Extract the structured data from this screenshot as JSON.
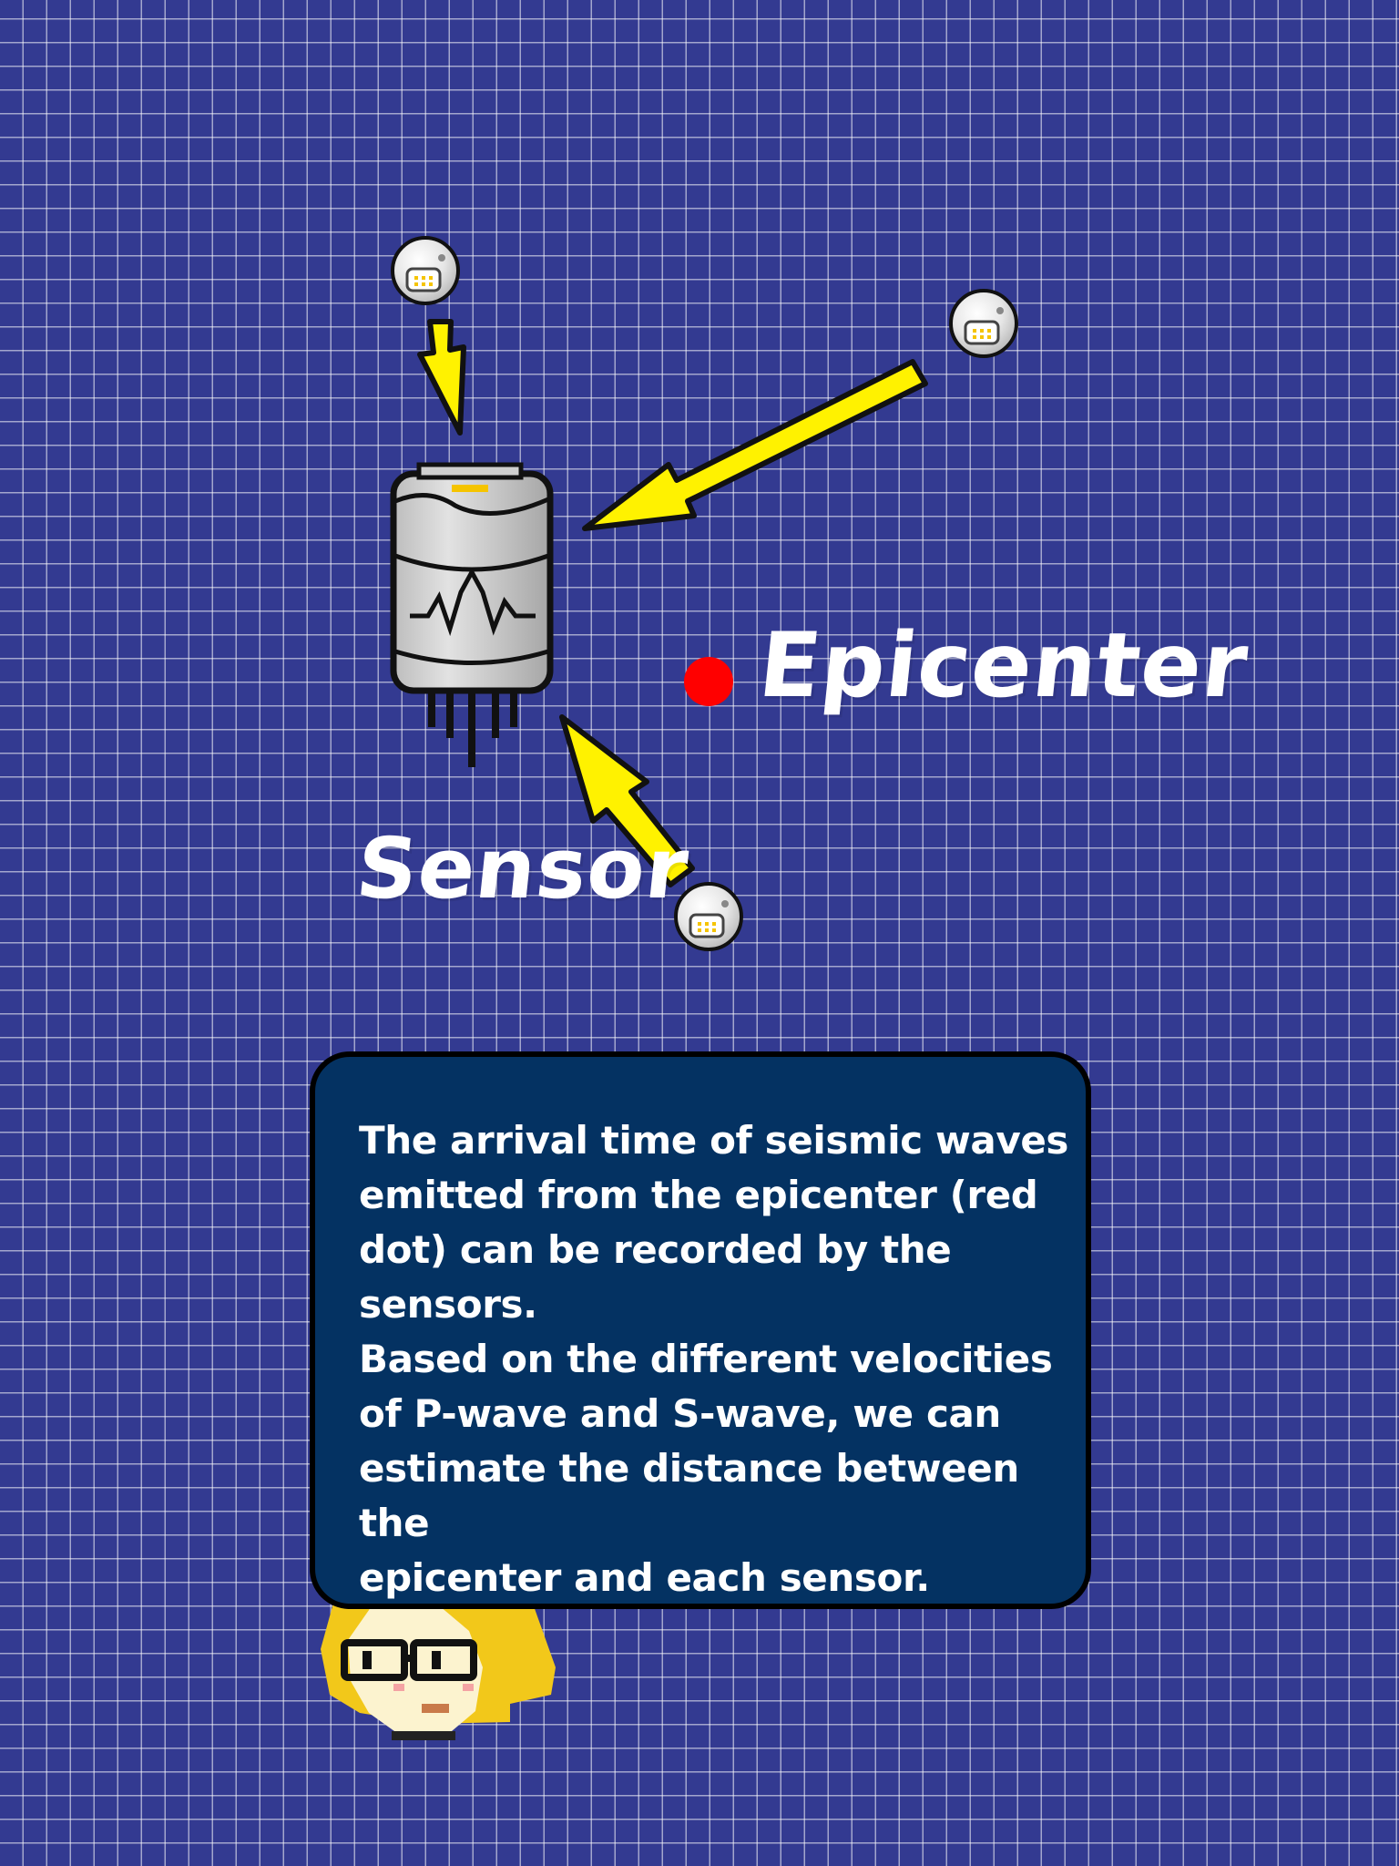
{
  "scene": {
    "epicenter_label": "Epicenter",
    "sensor_label": "Sensor"
  },
  "dialog": {
    "text": "The arrival time of seismic waves\nemitted from the epicenter (red\ndot) can be recorded by the sensors.\nBased on the different velocities\nof P-wave and S-wave, we can\nestimate the distance between the\nepicenter and each sensor."
  },
  "colors": {
    "background": "#333a91",
    "grid_lines": "#ffffff",
    "arrow_fill": "#fff200",
    "epicenter_dot": "#ff0000",
    "dialog_background": "#043262",
    "character_hair": "#f2c81a"
  },
  "icons": {
    "sensor": "seismic-sensor-icon",
    "small_sensors": "sensor-node-icon",
    "character": "scientist-character-icon"
  }
}
